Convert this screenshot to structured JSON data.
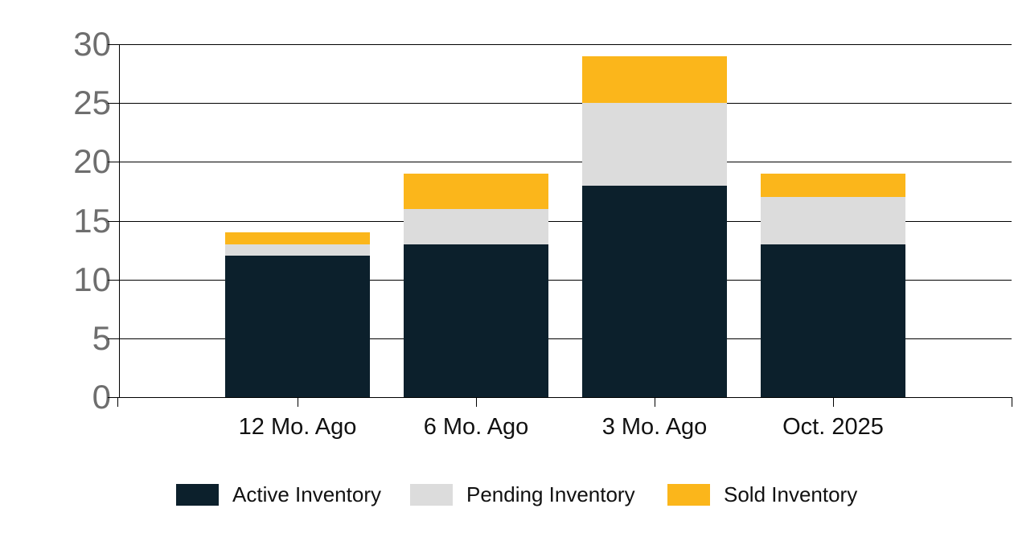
{
  "chart_data": {
    "type": "bar",
    "stacked": true,
    "title": "",
    "xlabel": "",
    "ylabel": "",
    "categories": [
      "12 Mo. Ago",
      "6 Mo. Ago",
      "3 Mo. Ago",
      "Oct. 2025"
    ],
    "series": [
      {
        "name": "Active Inventory",
        "color": "#0c202c",
        "values": [
          12,
          13,
          18,
          13
        ]
      },
      {
        "name": "Pending Inventory",
        "color": "#dcdcdc",
        "values": [
          1,
          3,
          7,
          4
        ]
      },
      {
        "name": "Sold Inventory",
        "color": "#fbb61b",
        "values": [
          1,
          3,
          4,
          2
        ]
      }
    ],
    "stack_totals": [
      14,
      19,
      29,
      19
    ],
    "ylim": [
      0,
      30
    ],
    "yticks": [
      0,
      5,
      10,
      15,
      20,
      25,
      30
    ],
    "grid": true,
    "legend_position": "bottom",
    "colors": {
      "axis_line": "#000000",
      "gridline": "#000000",
      "y_tick_text": "#6e6e6e",
      "x_tick_text": "#111111",
      "legend_text": "#111111",
      "background": "#ffffff"
    }
  }
}
